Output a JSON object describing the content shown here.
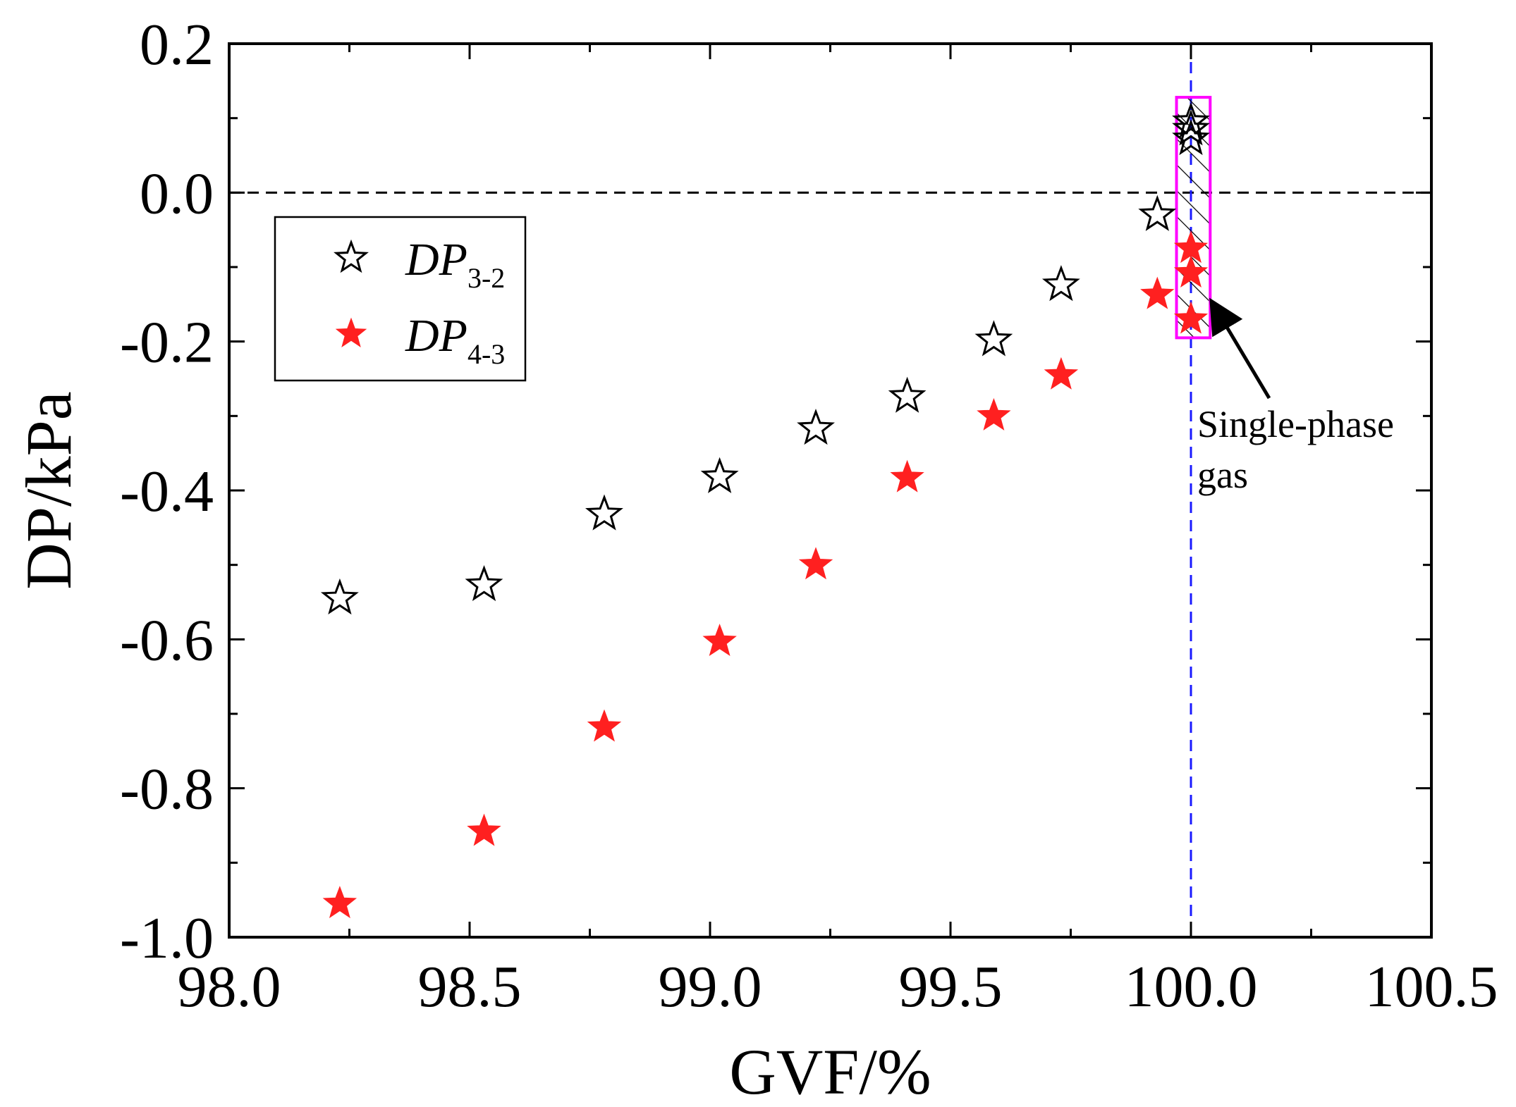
{
  "chart_data": {
    "type": "scatter",
    "title": "",
    "xlabel": "GVF/%",
    "ylabel": "DP/kPa",
    "xlim": [
      98.0,
      100.5
    ],
    "ylim": [
      -1.0,
      0.2
    ],
    "x_ticks": [
      98.0,
      98.5,
      99.0,
      99.5,
      100.0,
      100.5
    ],
    "x_tick_labels": [
      "98.0",
      "98.5",
      "99.0",
      "99.5",
      "100.0",
      "100.5"
    ],
    "y_ticks": [
      -1.0,
      -0.8,
      -0.6,
      -0.4,
      -0.2,
      0.0,
      0.2
    ],
    "y_tick_labels": [
      "-1.0",
      "-0.8",
      "-0.6",
      "-0.4",
      "-0.2",
      "0.0",
      "0.2"
    ],
    "grid": false,
    "legend_position": "upper-left",
    "series": [
      {
        "name": "DP",
        "subscript": "3-2",
        "marker": "open-star",
        "color": "#000000",
        "x": [
          98.23,
          98.53,
          98.78,
          99.02,
          99.22,
          99.41,
          99.59,
          99.73,
          99.93,
          100.0,
          100.0,
          100.0
        ],
        "y": [
          -0.545,
          -0.527,
          -0.432,
          -0.382,
          -0.317,
          -0.274,
          -0.198,
          -0.124,
          -0.03,
          0.095,
          0.085,
          0.072
        ]
      },
      {
        "name": "DP",
        "subscript": "4-3",
        "marker": "filled-star",
        "color": "#ff2020",
        "x": [
          98.23,
          98.53,
          98.78,
          99.02,
          99.22,
          99.41,
          99.59,
          99.73,
          99.93,
          100.0,
          100.0,
          100.0
        ],
        "y": [
          -0.955,
          -0.858,
          -0.718,
          -0.603,
          -0.5,
          -0.383,
          -0.3,
          -0.245,
          -0.137,
          -0.075,
          -0.108,
          -0.17
        ]
      }
    ],
    "reference_lines": [
      {
        "orientation": "horizontal",
        "value": 0.0,
        "style": "dashed",
        "color": "#000000"
      },
      {
        "orientation": "vertical",
        "value": 100.0,
        "style": "dashed",
        "color": "#1a1aff"
      }
    ],
    "highlight_box": {
      "x_range": [
        99.97,
        100.04
      ],
      "y_range": [
        -0.195,
        0.128
      ],
      "border_color": "#ff00ff",
      "fill": "hatched"
    },
    "annotation": {
      "lines": [
        "Single-phase",
        "gas"
      ],
      "arrow_target": [
        100.04,
        -0.14
      ]
    }
  }
}
